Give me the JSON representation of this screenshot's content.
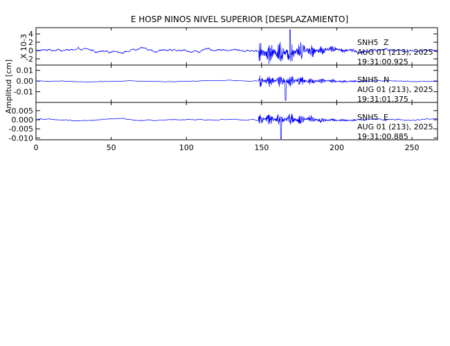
{
  "chart_data": {
    "type": "line",
    "title": "E HOSP NINOS NIVEL SUPERIOR [DESPLAZAMIENTO]",
    "ylabel": "Amplitud [cm]",
    "xlim": [
      0,
      267
    ],
    "x_ticks": [
      0,
      50,
      100,
      150,
      200,
      250
    ],
    "x_tick_labels": [
      "0",
      "50",
      "100",
      "150",
      "200",
      "250"
    ],
    "grid": false,
    "line_color": "#0000ff",
    "panels": [
      {
        "id": "z",
        "station": "SNH5",
        "component": "Z",
        "date": "AUG 01 (213), 2025",
        "time": "19:31:00.925",
        "scale_label": "X 10-3",
        "ylim": [
          -3.5,
          5.5
        ],
        "y_ticks": [
          -2,
          0,
          2,
          4
        ],
        "y_tick_labels": [
          "-2",
          "0",
          "2",
          "4"
        ],
        "noise": 0.7,
        "burst": 2.8,
        "spike_x": 169,
        "spike_value": 5.0
      },
      {
        "id": "n",
        "station": "SNH5",
        "component": "N",
        "date": "AUG 01 (213), 2025",
        "time": "19:31:01.375",
        "ylim": [
          -0.02,
          0.015
        ],
        "y_ticks": [
          -0.01,
          0.0,
          0.01
        ],
        "y_tick_labels": [
          "-0.01",
          "0.00",
          "0.01"
        ],
        "noise": 0.0006,
        "burst": 0.006,
        "spike_x": 166,
        "spike_value": -0.018
      },
      {
        "id": "e",
        "station": "SNH5",
        "component": "E",
        "date": "AUG 01 (213), 2025",
        "time": "19:31:00.885",
        "ylim": [
          -0.011,
          0.0095
        ],
        "y_ticks": [
          -0.01,
          -0.005,
          0.0,
          0.005
        ],
        "y_tick_labels": [
          "-0.010",
          "-0.005",
          "0.000",
          "0.005"
        ],
        "noise": 0.0006,
        "burst": 0.0035,
        "spike_x": 163,
        "spike_value": -0.0105
      }
    ]
  }
}
